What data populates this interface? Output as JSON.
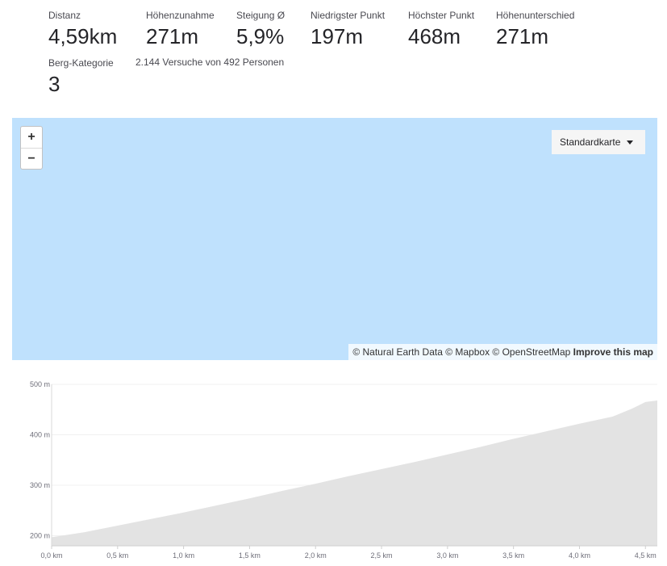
{
  "stats": [
    {
      "label": "Distanz",
      "value": "4,59km"
    },
    {
      "label": "Höhenzunahme",
      "value": "271m"
    },
    {
      "label": "Steigung Ø",
      "value": "5,9%"
    },
    {
      "label": "Niedrigster Punkt",
      "value": "197m"
    },
    {
      "label": "Höchster Punkt",
      "value": "468m"
    },
    {
      "label": "Höhenunterschied",
      "value": "271m"
    }
  ],
  "category": {
    "label": "Berg-Kategorie",
    "value": "3"
  },
  "attempts": "2.144 Versuche von 492 Personen",
  "map": {
    "zoom_in": "+",
    "zoom_out": "−",
    "map_type": "Standardkarte",
    "attribution": "© Natural Earth Data © Mapbox © OpenStreetMap",
    "improve_link": "Improve this map",
    "background_color": "#bfe1fd"
  },
  "chart_data": {
    "type": "area",
    "y_ticks": [
      "500 m",
      "400 m",
      "300 m",
      "200 m"
    ],
    "x_ticks": [
      "0,0 km",
      "0,5 km",
      "1,0 km",
      "1,5 km",
      "2,0 km",
      "2,5 km",
      "3,0 km",
      "3,5 km",
      "4,0 km",
      "4,5 km"
    ],
    "ylim": [
      180,
      500
    ],
    "xlim": [
      0,
      4.59
    ],
    "fill_color": "#e3e3e3",
    "x": [
      0,
      0.25,
      0.5,
      0.75,
      1.0,
      1.25,
      1.5,
      1.75,
      2.0,
      2.25,
      2.5,
      2.75,
      3.0,
      3.25,
      3.5,
      3.75,
      4.0,
      4.25,
      4.4,
      4.5,
      4.59
    ],
    "values": [
      197,
      207,
      220,
      233,
      246,
      260,
      274,
      289,
      303,
      318,
      332,
      346,
      361,
      376,
      392,
      407,
      422,
      436,
      452,
      465,
      468
    ]
  }
}
